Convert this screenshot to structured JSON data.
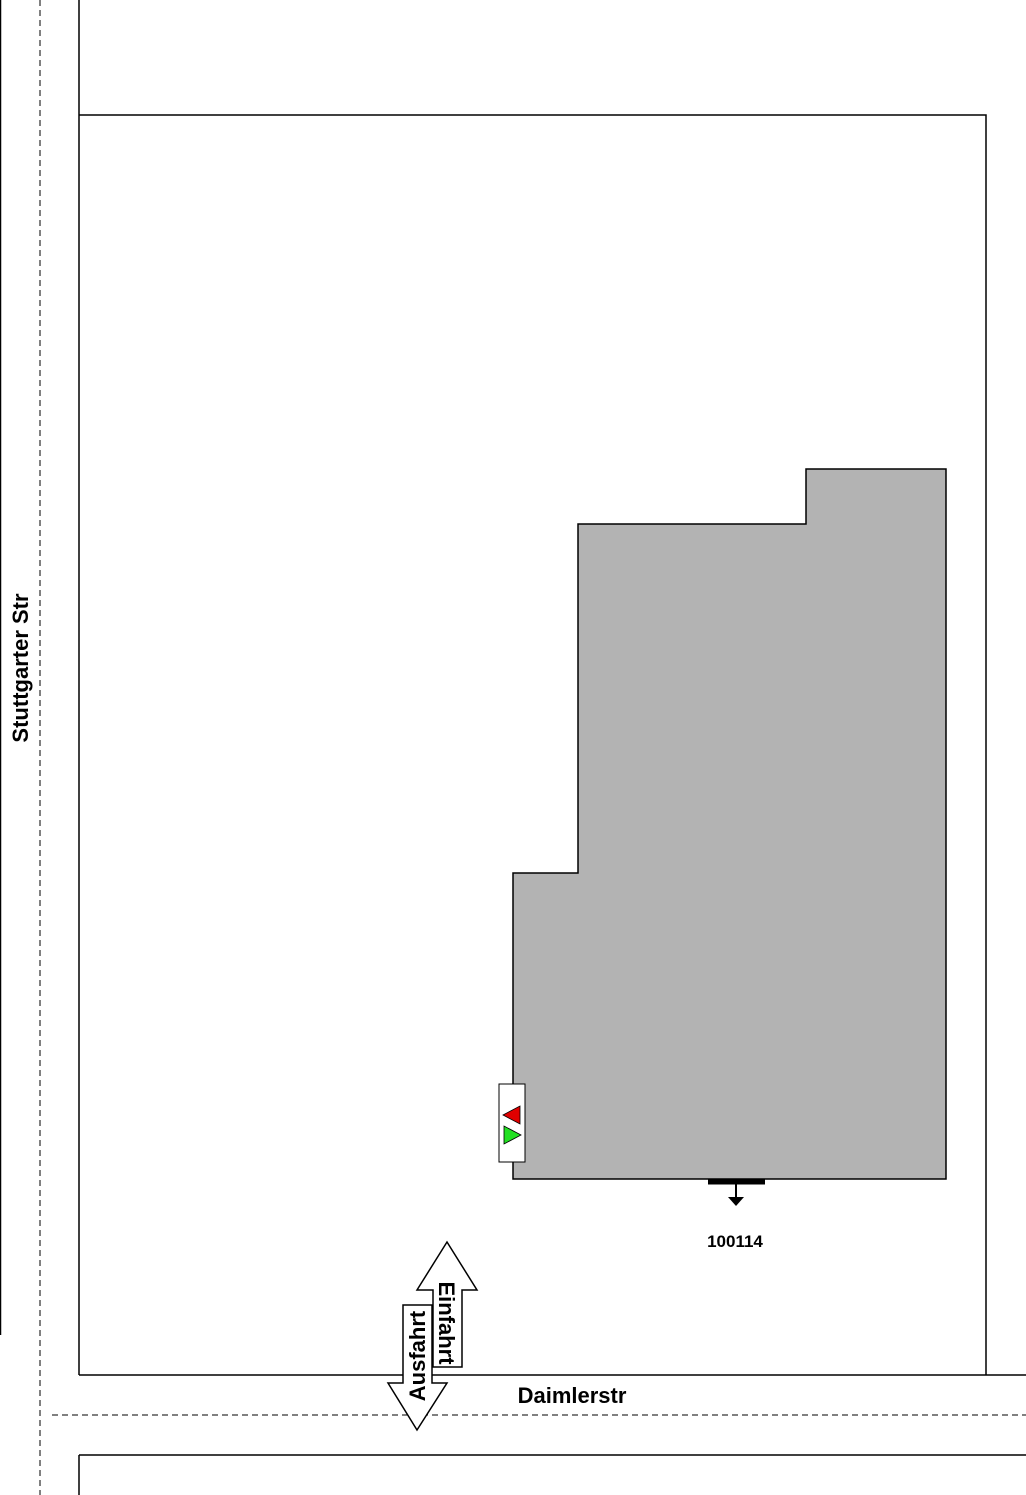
{
  "streets": {
    "west": "Stuttgarter Str",
    "south": "Daimlerstr"
  },
  "building": {
    "id": "100114"
  },
  "access": {
    "entry": "Einfahrt",
    "exit": "Ausfahrt"
  }
}
